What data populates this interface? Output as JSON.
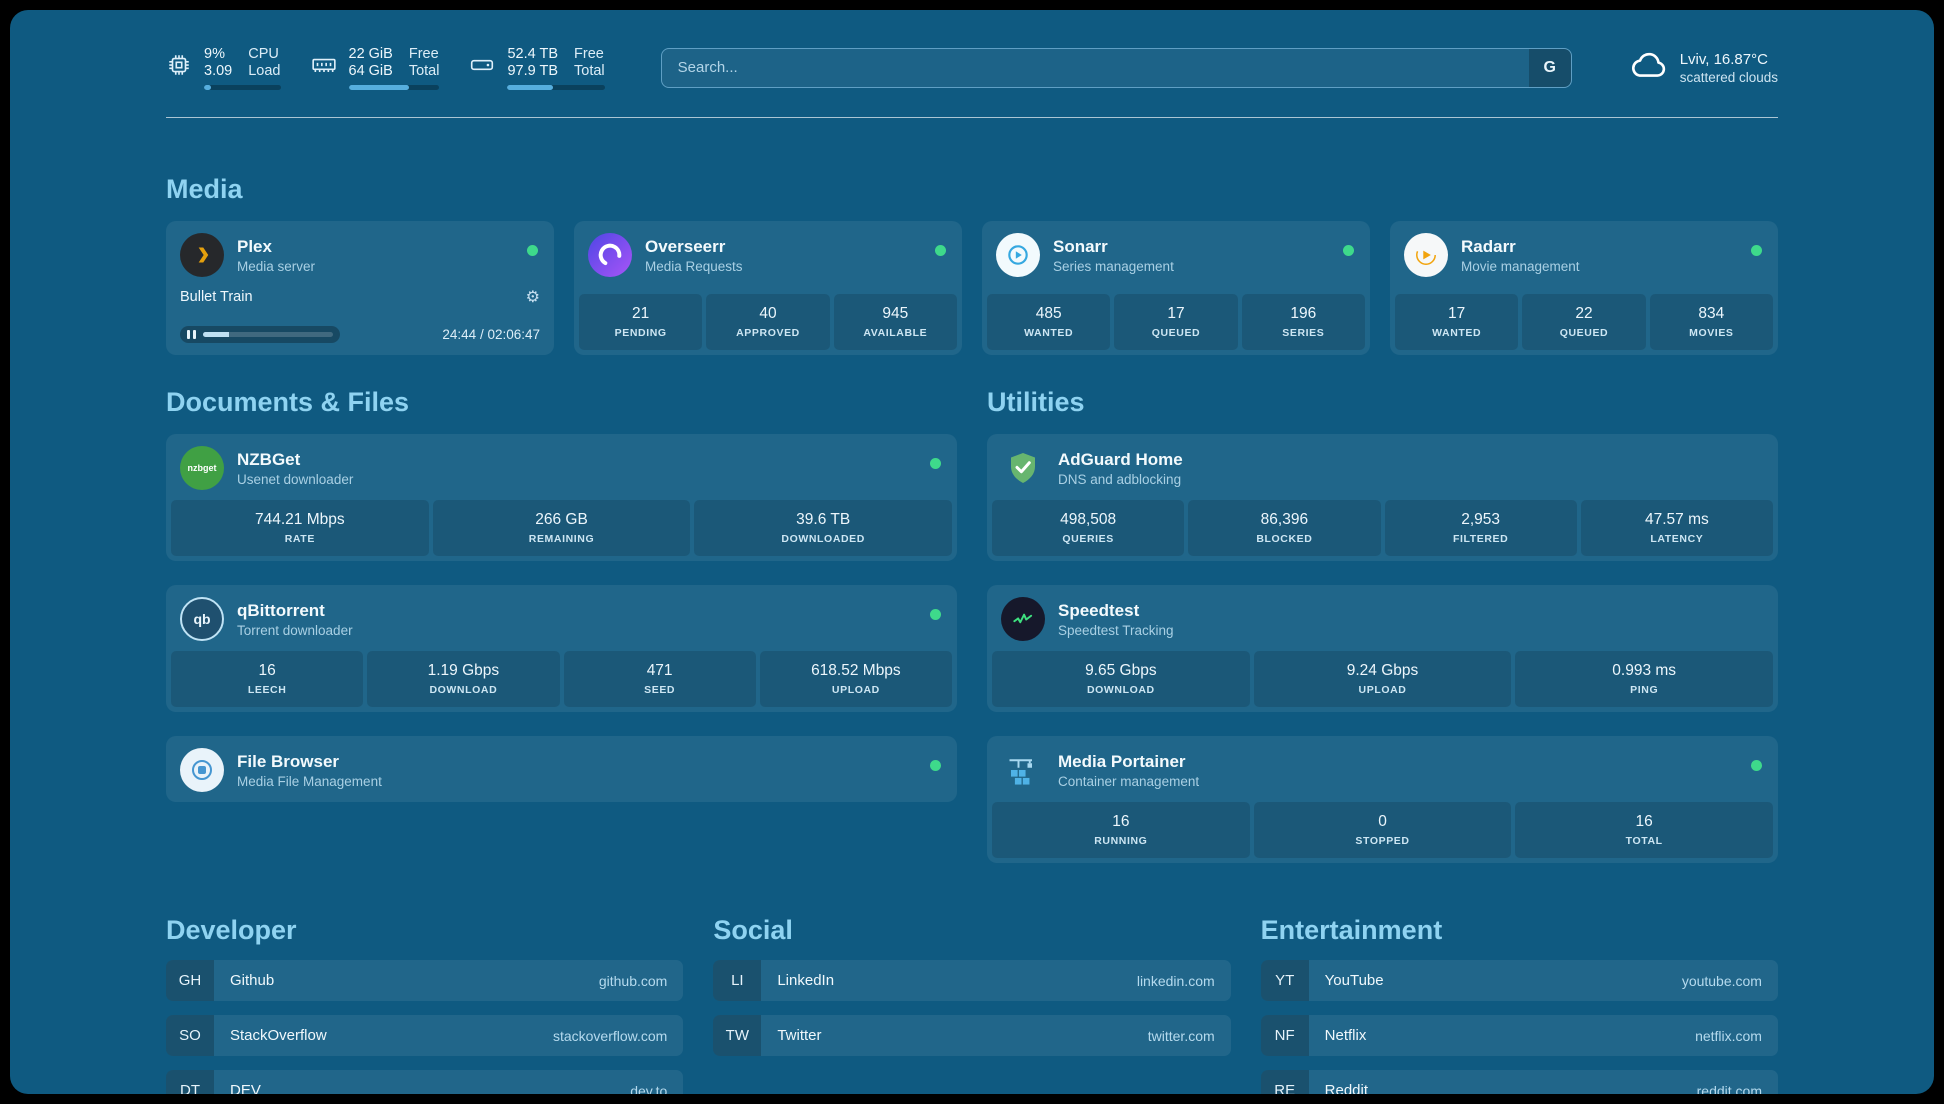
{
  "colors": {
    "background": "#0f5a81",
    "accent": "#8fd3f1",
    "status_ok": "#3ed98b"
  },
  "topbar": {
    "cpu": {
      "value_top": "9%",
      "value_bottom": "3.09",
      "label_top": "CPU",
      "label_bottom": "Load",
      "progress": 9
    },
    "memory": {
      "value_top": "22 GiB",
      "value_bottom": "64 GiB",
      "label_top": "Free",
      "label_bottom": "Total",
      "progress": 66
    },
    "disk": {
      "value_top": "52.4 TB",
      "value_bottom": "97.9 TB",
      "label_top": "Free",
      "label_bottom": "Total",
      "progress": 47
    },
    "search": {
      "placeholder": "Search...",
      "button_label": "G"
    },
    "weather": {
      "location": "Lviv, 16.87°C",
      "condition": "scattered clouds"
    }
  },
  "media": {
    "title": "Media",
    "plex": {
      "name": "Plex",
      "subtitle": "Media server",
      "now_playing": "Bullet Train",
      "time": "24:44 / 02:06:47",
      "progress": 20
    },
    "overseerr": {
      "name": "Overseerr",
      "subtitle": "Media Requests",
      "stats": [
        {
          "value": "21",
          "label": "PENDING"
        },
        {
          "value": "40",
          "label": "APPROVED"
        },
        {
          "value": "945",
          "label": "AVAILABLE"
        }
      ]
    },
    "sonarr": {
      "name": "Sonarr",
      "subtitle": "Series management",
      "stats": [
        {
          "value": "485",
          "label": "WANTED"
        },
        {
          "value": "17",
          "label": "QUEUED"
        },
        {
          "value": "196",
          "label": "SERIES"
        }
      ]
    },
    "radarr": {
      "name": "Radarr",
      "subtitle": "Movie management",
      "stats": [
        {
          "value": "17",
          "label": "WANTED"
        },
        {
          "value": "22",
          "label": "QUEUED"
        },
        {
          "value": "834",
          "label": "MOVIES"
        }
      ]
    }
  },
  "documents": {
    "title": "Documents & Files",
    "nzbget": {
      "name": "NZBGet",
      "subtitle": "Usenet downloader",
      "icon_text": "nzbget",
      "stats": [
        {
          "value": "744.21 Mbps",
          "label": "RATE"
        },
        {
          "value": "266 GB",
          "label": "REMAINING"
        },
        {
          "value": "39.6 TB",
          "label": "DOWNLOADED"
        }
      ]
    },
    "qbittorrent": {
      "name": "qBittorrent",
      "subtitle": "Torrent downloader",
      "icon_text": "qb",
      "stats": [
        {
          "value": "16",
          "label": "LEECH"
        },
        {
          "value": "1.19 Gbps",
          "label": "DOWNLOAD"
        },
        {
          "value": "471",
          "label": "SEED"
        },
        {
          "value": "618.52 Mbps",
          "label": "UPLOAD"
        }
      ]
    },
    "filebrowser": {
      "name": "File Browser",
      "subtitle": "Media File Management"
    }
  },
  "utilities": {
    "title": "Utilities",
    "adguard": {
      "name": "AdGuard Home",
      "subtitle": "DNS and adblocking",
      "stats": [
        {
          "value": "498,508",
          "label": "QUERIES"
        },
        {
          "value": "86,396",
          "label": "BLOCKED"
        },
        {
          "value": "2,953",
          "label": "FILTERED"
        },
        {
          "value": "47.57 ms",
          "label": "LATENCY"
        }
      ]
    },
    "speedtest": {
      "name": "Speedtest",
      "subtitle": "Speedtest Tracking",
      "stats": [
        {
          "value": "9.65 Gbps",
          "label": "DOWNLOAD"
        },
        {
          "value": "9.24 Gbps",
          "label": "UPLOAD"
        },
        {
          "value": "0.993 ms",
          "label": "PING"
        }
      ]
    },
    "portainer": {
      "name": "Media Portainer",
      "subtitle": "Container management",
      "stats": [
        {
          "value": "16",
          "label": "RUNNING"
        },
        {
          "value": "0",
          "label": "STOPPED"
        },
        {
          "value": "16",
          "label": "TOTAL"
        }
      ]
    }
  },
  "bookmarks": {
    "developer": {
      "title": "Developer",
      "items": [
        {
          "abbr": "GH",
          "name": "Github",
          "url": "github.com"
        },
        {
          "abbr": "SO",
          "name": "StackOverflow",
          "url": "stackoverflow.com"
        },
        {
          "abbr": "DT",
          "name": "DEV",
          "url": "dev.to"
        }
      ]
    },
    "social": {
      "title": "Social",
      "items": [
        {
          "abbr": "LI",
          "name": "LinkedIn",
          "url": "linkedin.com"
        },
        {
          "abbr": "TW",
          "name": "Twitter",
          "url": "twitter.com"
        }
      ]
    },
    "entertainment": {
      "title": "Entertainment",
      "items": [
        {
          "abbr": "YT",
          "name": "YouTube",
          "url": "youtube.com"
        },
        {
          "abbr": "NF",
          "name": "Netflix",
          "url": "netflix.com"
        },
        {
          "abbr": "RE",
          "name": "Reddit",
          "url": "reddit.com"
        }
      ]
    }
  }
}
